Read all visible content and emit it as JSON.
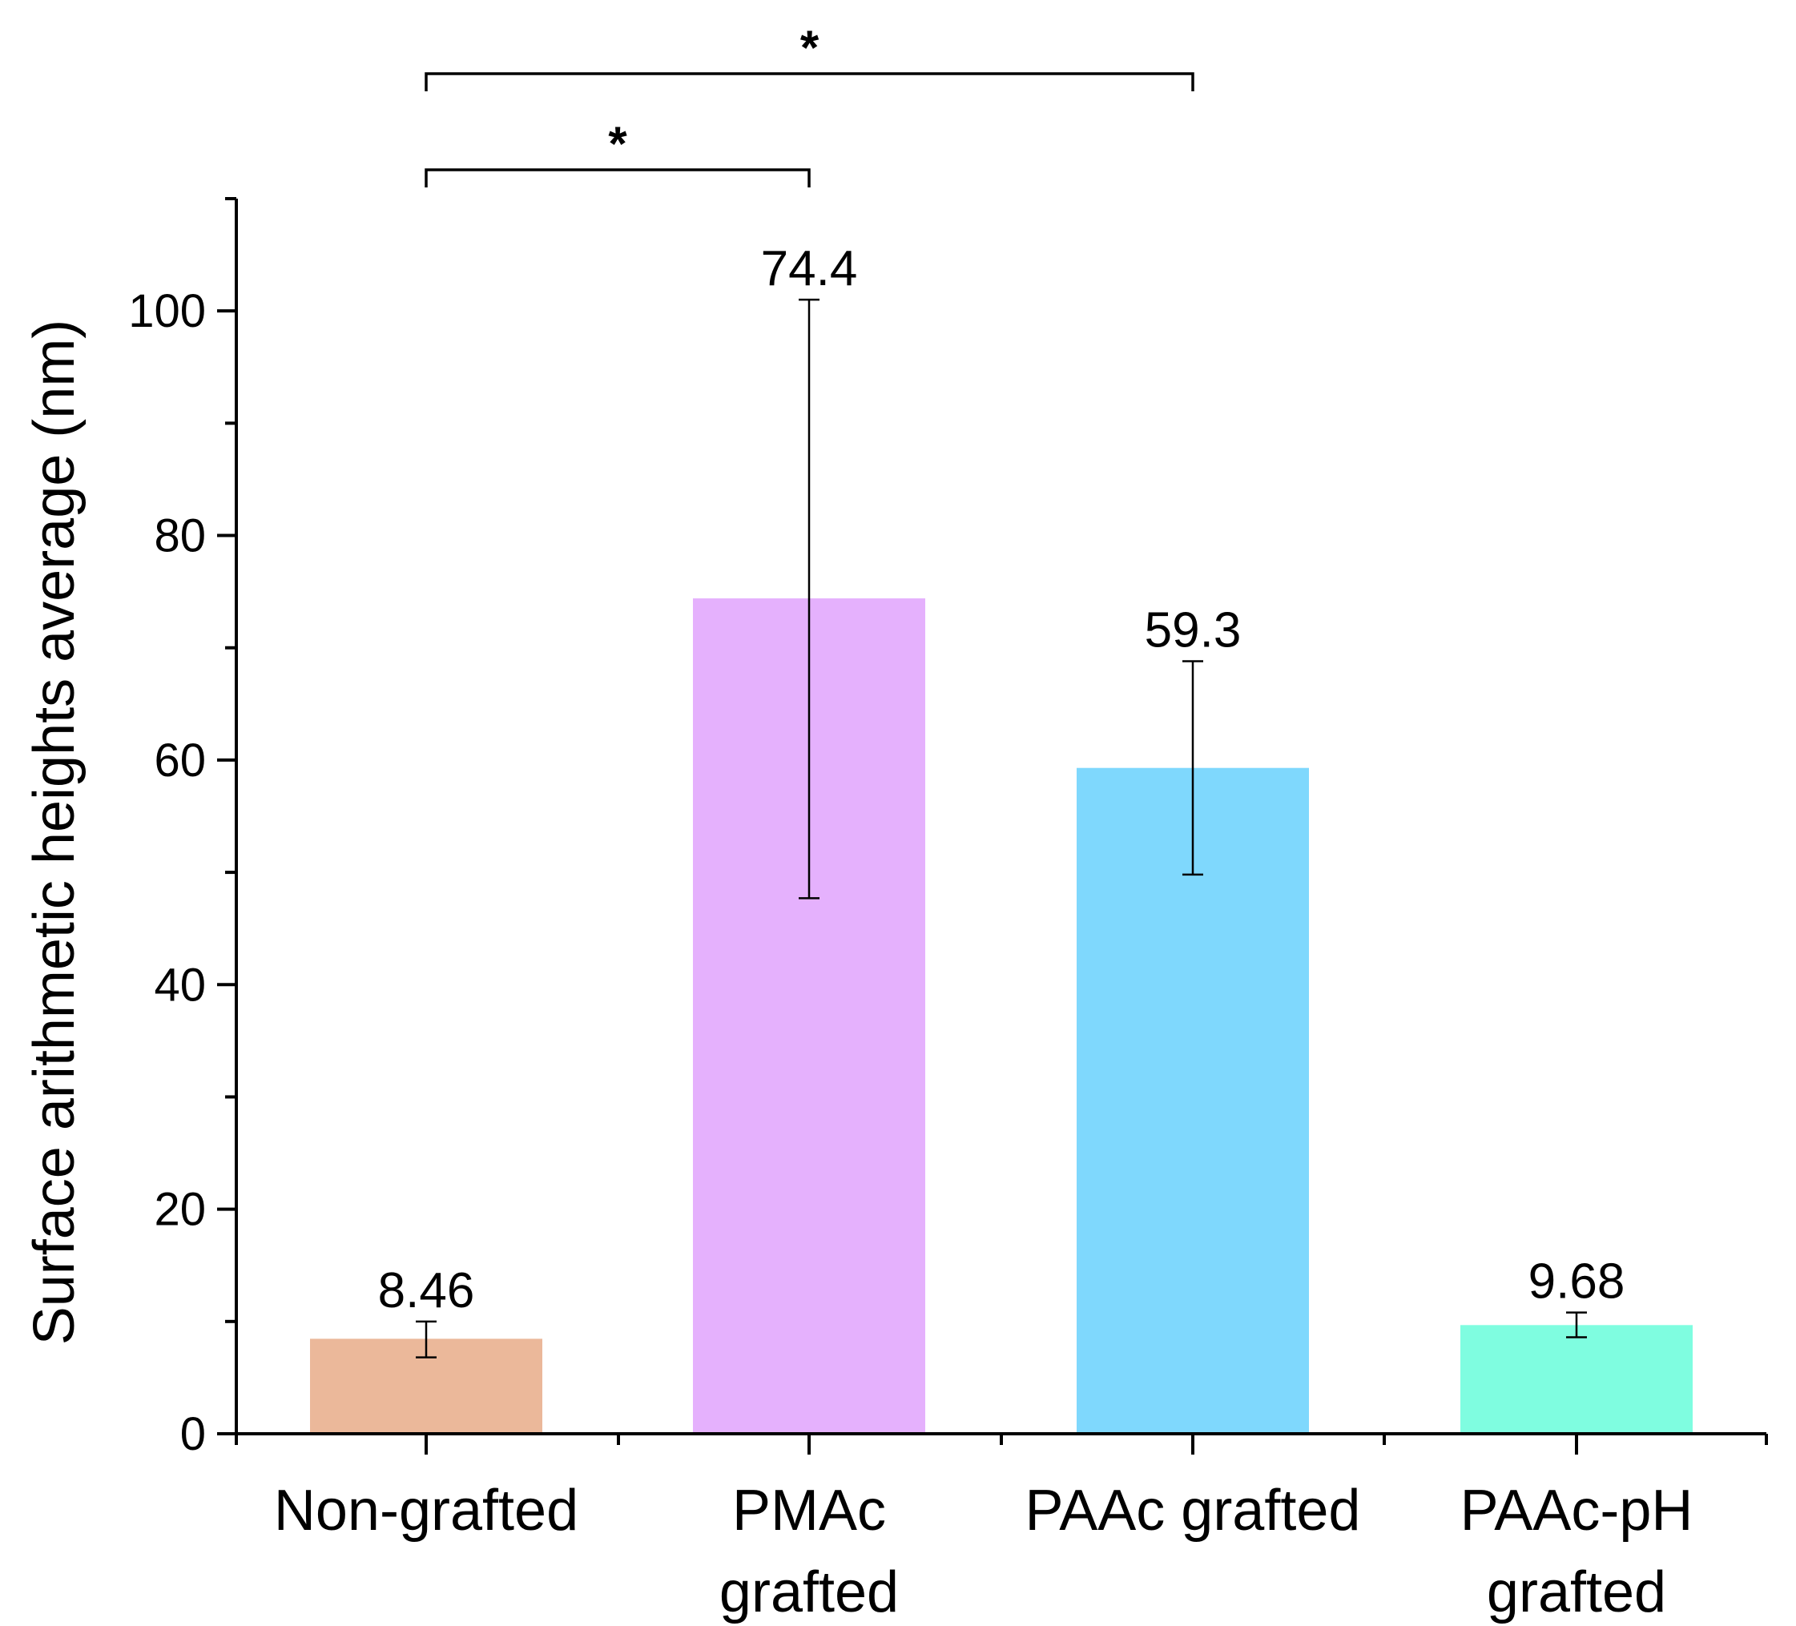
{
  "chart_data": {
    "type": "bar",
    "title": "",
    "xlabel": "",
    "ylabel": "Surface arithmetic heights average (nm)",
    "ylim": [
      0,
      110
    ],
    "yticks": [
      0,
      20,
      40,
      60,
      80,
      100
    ],
    "ytick_labels": [
      "0",
      "20",
      "40",
      "60",
      "80",
      "100"
    ],
    "minor_ytick_step": 10,
    "grid": false,
    "categories": [
      [
        "Non-grafted"
      ],
      [
        "PMAc",
        "grafted"
      ],
      [
        "PAAc grafted"
      ],
      [
        "PAAc-pH",
        "grafted"
      ]
    ],
    "values": [
      8.46,
      74.4,
      59.3,
      9.68
    ],
    "value_labels": [
      "8.46",
      "74.4",
      "59.3",
      "9.68"
    ],
    "error_upper": [
      10.0,
      101.0,
      68.8,
      10.8
    ],
    "error_lower": [
      6.8,
      47.7,
      49.8,
      8.6
    ],
    "colors": [
      "#ebb89a",
      "#e5b1fd",
      "#7fd8fd",
      "#7ffde0"
    ],
    "significance": [
      {
        "from": 0,
        "to": 1,
        "label": "*"
      },
      {
        "from": 0,
        "to": 2,
        "label": "*"
      }
    ]
  }
}
